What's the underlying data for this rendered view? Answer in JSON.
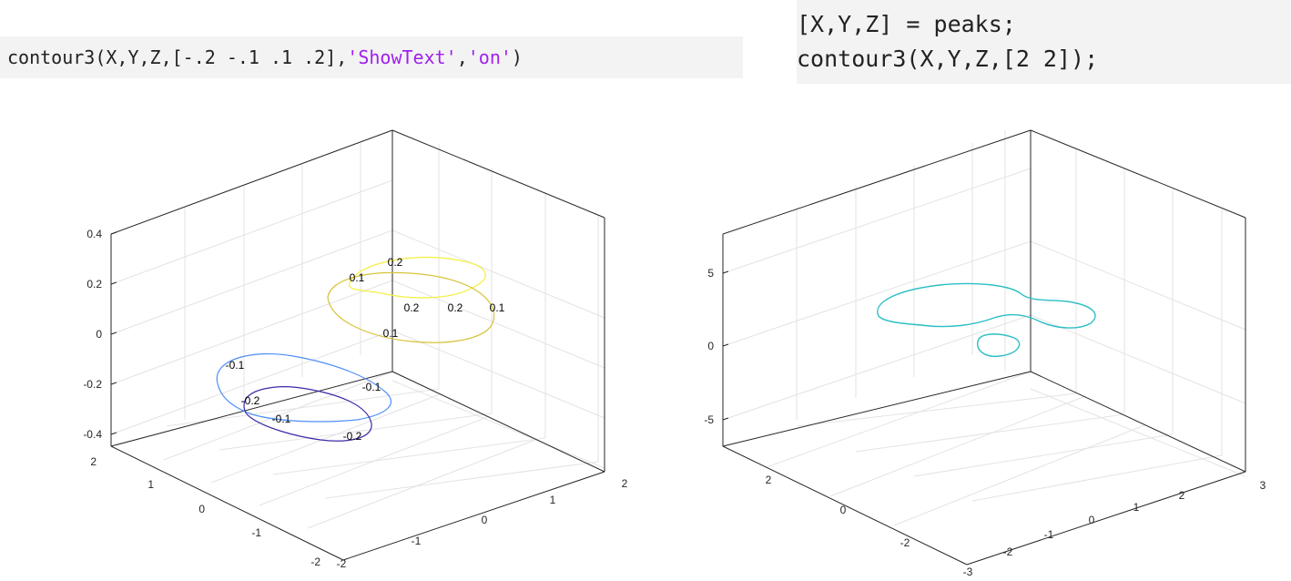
{
  "code_left": {
    "prefix": "contour3(X,Y,Z,[-.2 -.1 .1 .2],",
    "str1": "'ShowText'",
    "comma": ",",
    "str2": "'on'",
    "suffix": ")"
  },
  "code_right": {
    "line1": "[X,Y,Z] = peaks;",
    "line2": "contour3(X,Y,Z,[2 2]);"
  },
  "chart_data": [
    {
      "type": "contour3",
      "levels": [
        -0.2,
        -0.1,
        0.1,
        0.2
      ],
      "zlim": [
        -0.4,
        0.4
      ],
      "xlim": [
        -2,
        2
      ],
      "ylim": [
        -2,
        2
      ],
      "grid": true,
      "z_ticks": [
        "0.4",
        "0.2",
        "0",
        "-0.2",
        "-0.4"
      ],
      "y_ticks": [
        "2",
        "1",
        "0",
        "-1",
        "-2"
      ],
      "x_ticks": [
        "-2",
        "-1",
        "0",
        "1",
        "2"
      ],
      "contour_labels": [
        "0.2",
        "0.1",
        "0.2",
        "0.2",
        "0.1",
        "0.1",
        "-0.1",
        "-0.1",
        "-0.2",
        "-0.1",
        "-0.2"
      ],
      "colors": {
        "level_0.2": "#f5ef3c",
        "level_0.1": "#d6c43b",
        "level_-0.1": "#4f8ff7",
        "level_-0.2": "#3b2ba8"
      }
    },
    {
      "type": "contour3",
      "levels": [
        2
      ],
      "zlim": [
        -7,
        7
      ],
      "xlim": [
        -3,
        3
      ],
      "ylim": [
        -3,
        3
      ],
      "grid": true,
      "z_ticks": [
        "5",
        "0",
        "-5"
      ],
      "y_ticks": [
        "2",
        "0",
        "-2"
      ],
      "x_ticks": [
        "-3",
        "-2",
        "-1",
        "0",
        "1",
        "2",
        "3"
      ],
      "contour_labels": [],
      "colors": {
        "level_2": "#2dbfc5"
      }
    }
  ]
}
